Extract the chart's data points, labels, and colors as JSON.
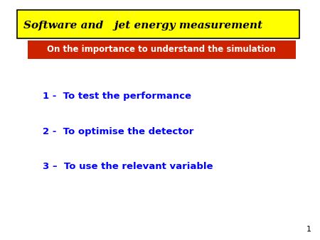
{
  "title": "Software and   jet energy measurement",
  "subtitle": "On the importance to understand the simulation",
  "title_bg": "#ffff00",
  "title_border": "#000000",
  "subtitle_bg": "#cc2200",
  "subtitle_text_color": "#ffffff",
  "items": [
    "1 -  To test the performance",
    "2 -  To optimise the detector",
    "3 –  To use the relevant variable"
  ],
  "item_color": "#0000ff",
  "bg_color": "#ffffff",
  "page_number": "1",
  "title_font_size": 11,
  "subtitle_font_size": 8.5,
  "item_font_size": 9.5
}
